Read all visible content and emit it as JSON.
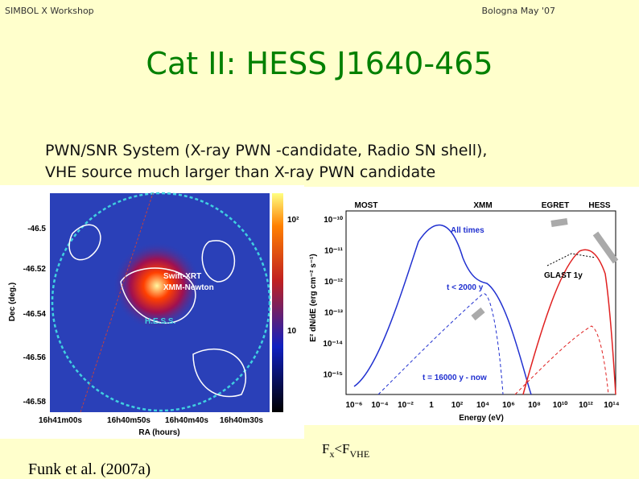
{
  "header": {
    "left": "SIMBOL X Workshop",
    "right": "Bologna May '07"
  },
  "title": "Cat II: HESS J1640-465",
  "body": [
    "PWN/SNR System (X-ray PWN -candidate, Radio SN shell),",
    "VHE source much larger than X-ray PWN candidate"
  ],
  "left_figure": {
    "yticks": [
      "-46.5",
      "-46.52",
      "-46.54",
      "-46.56",
      "-46.58"
    ],
    "xticks": [
      "16h41m00s",
      "16h40m50s",
      "16h40m40s",
      "16h40m30s"
    ],
    "ylabel": "Dec (deg.)",
    "xlabel": "RA (hours)",
    "colorbar": [
      "10²",
      "10"
    ],
    "labels": [
      "Swift-XRT",
      "XMM-Newton",
      "H.E.S.S."
    ]
  },
  "right_figure": {
    "instruments": [
      "MOST",
      "XMM",
      "EGRET",
      "HESS"
    ],
    "annotations": [
      "All times",
      "t < 2000 y",
      "t = 16000 y - now",
      "GLAST 1y"
    ],
    "yticks": [
      "10⁻¹⁰",
      "10⁻¹¹",
      "10⁻¹²",
      "10⁻¹³",
      "10⁻¹⁴",
      "10⁻¹⁵"
    ],
    "xticks": [
      "10⁻⁶",
      "10⁻⁴",
      "10⁻²",
      "1",
      "10²",
      "10⁴",
      "10⁶",
      "10⁸",
      "10¹⁰",
      "10¹²",
      "10¹⁴"
    ],
    "ylabel": "E² dN/dE (erg cm⁻² s⁻¹)",
    "xlabel": "Energy (eV)"
  },
  "citation": "Funk et al. (2007a)",
  "note": [
    "F",
    "x",
    "<F",
    "VHE"
  ]
}
